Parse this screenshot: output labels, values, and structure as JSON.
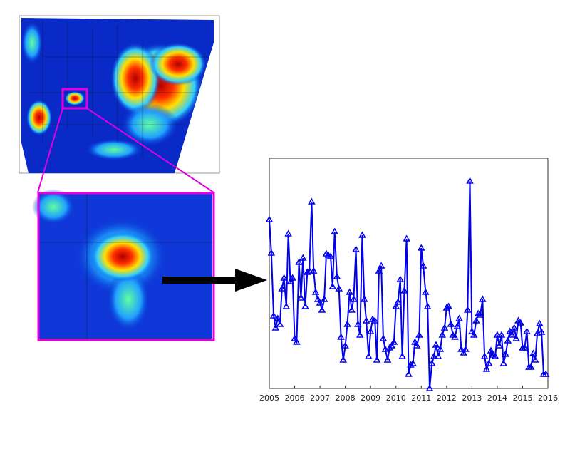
{
  "chart_data": {
    "type": "line",
    "x": [
      2005,
      2005.08,
      2005.17,
      2005.25,
      2005.33,
      2005.42,
      2005.5,
      2005.58,
      2005.67,
      2005.75,
      2005.83,
      2005.92,
      2006,
      2006.08,
      2006.17,
      2006.25,
      2006.33,
      2006.42,
      2006.5,
      2006.58,
      2006.67,
      2006.75,
      2006.83,
      2006.92,
      2007,
      2007.08,
      2007.17,
      2007.25,
      2007.33,
      2007.42,
      2007.5,
      2007.58,
      2007.67,
      2007.75,
      2007.83,
      2007.92,
      2008,
      2008.08,
      2008.17,
      2008.25,
      2008.33,
      2008.42,
      2008.5,
      2008.58,
      2008.67,
      2008.75,
      2008.83,
      2008.92,
      2009,
      2009.08,
      2009.17,
      2009.25,
      2009.33,
      2009.42,
      2009.5,
      2009.58,
      2009.67,
      2009.75,
      2009.83,
      2009.92,
      2010,
      2010.08,
      2010.17,
      2010.25,
      2010.33,
      2010.42,
      2010.5,
      2010.58,
      2010.67,
      2010.75,
      2010.83,
      2010.92,
      2011,
      2011.08,
      2011.17,
      2011.25,
      2011.33,
      2011.42,
      2011.5,
      2011.58,
      2011.67,
      2011.75,
      2011.83,
      2011.92,
      2012,
      2012.08,
      2012.17,
      2012.25,
      2012.33,
      2012.42,
      2012.5,
      2012.58,
      2012.67,
      2012.75,
      2012.83,
      2012.92,
      2013,
      2013.08,
      2013.17,
      2013.25,
      2013.33,
      2013.42,
      2013.5,
      2013.58,
      2013.67,
      2013.75,
      2013.83,
      2013.92,
      2014,
      2014.08,
      2014.17,
      2014.25,
      2014.33,
      2014.42,
      2014.5,
      2014.58,
      2014.67,
      2014.75,
      2014.83,
      2014.92,
      2015,
      2015.08,
      2015.17,
      2015.25,
      2015.33,
      2015.42,
      2015.5,
      2015.58,
      2015.67,
      2015.75,
      2015.83,
      2015.92
    ],
    "series": [
      {
        "color": "#0000ee",
        "values": [
          237,
          190,
          102,
          85,
          98,
          90,
          140,
          155,
          115,
          217,
          150,
          155,
          70,
          65,
          177,
          127,
          183,
          115,
          163,
          165,
          262,
          165,
          135,
          125,
          120,
          110,
          125,
          189,
          187,
          185,
          143,
          220,
          157,
          140,
          72,
          40,
          60,
          90,
          135,
          110,
          125,
          195,
          90,
          75,
          215,
          125,
          95,
          45,
          80,
          97,
          95,
          40,
          165,
          172,
          70,
          55,
          40,
          57,
          60,
          65,
          115,
          121,
          153,
          45,
          137,
          210,
          20,
          33,
          35,
          65,
          60,
          75,
          197,
          172,
          135,
          115,
          0,
          35,
          45,
          61,
          45,
          55,
          75,
          85,
          113,
          115,
          90,
          75,
          72,
          87,
          98,
          55,
          50,
          55,
          110,
          291,
          80,
          75,
          95,
          105,
          103,
          125,
          45,
          27,
          35,
          53,
          47,
          45,
          75,
          60,
          75,
          35,
          48,
          67,
          80,
          75,
          85,
          70,
          95,
          92,
          57,
          57,
          80,
          30,
          30,
          49,
          40,
          77,
          91,
          79,
          20,
          20
        ]
      }
    ],
    "xlim": [
      2005,
      2016
    ],
    "xticks": [
      2005,
      2006,
      2007,
      2008,
      2009,
      2010,
      2011,
      2012,
      2013,
      2014,
      2015,
      2016
    ],
    "ylim": [
      0,
      323
    ]
  }
}
